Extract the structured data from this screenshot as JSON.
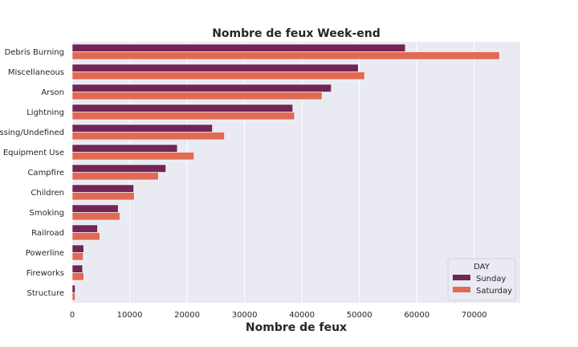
{
  "chart_data": {
    "type": "bar",
    "orientation": "horizontal",
    "title": "Nombre de feux Week-end",
    "xlabel": "Nombre de feux",
    "ylabel": "",
    "categories": [
      "Debris Burning",
      "Miscellaneous",
      "Arson",
      "Lightning",
      "Missing/Undefined",
      "Equipment Use",
      "Campfire",
      "Children",
      "Smoking",
      "Railroad",
      "Powerline",
      "Fireworks",
      "Structure"
    ],
    "series": [
      {
        "name": "Sunday",
        "color": "#722557",
        "values": [
          58000,
          49800,
          45100,
          38400,
          24400,
          18300,
          16300,
          10700,
          8000,
          4400,
          2000,
          1800,
          500
        ]
      },
      {
        "name": "Saturday",
        "color": "#E16A54",
        "values": [
          74400,
          50900,
          43500,
          38700,
          26500,
          21200,
          15000,
          10800,
          8300,
          4800,
          1900,
          2000,
          500
        ]
      }
    ],
    "xlim": [
      0,
      78000
    ],
    "xticks": [
      0,
      10000,
      20000,
      30000,
      40000,
      50000,
      60000,
      70000
    ],
    "xtick_labels": [
      "0",
      "10000",
      "20000",
      "30000",
      "40000",
      "50000",
      "60000",
      "70000"
    ],
    "grid": true,
    "background_color": "#EAEAF2",
    "legend": {
      "title": "DAY",
      "placement": "lower-right"
    }
  }
}
